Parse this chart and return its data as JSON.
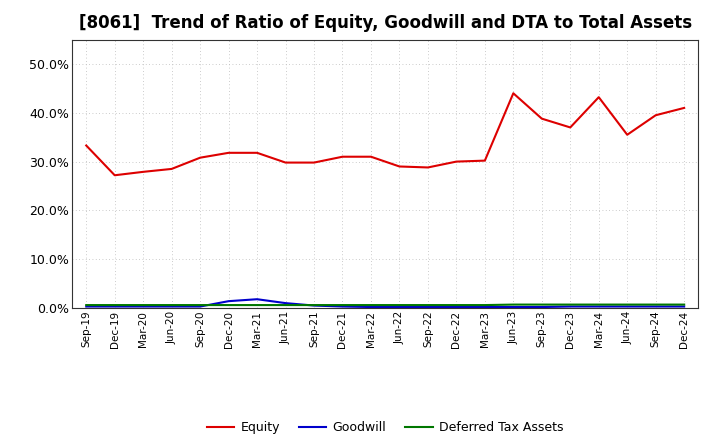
{
  "title": "[8061]  Trend of Ratio of Equity, Goodwill and DTA to Total Assets",
  "x_labels": [
    "Sep-19",
    "Dec-19",
    "Mar-20",
    "Jun-20",
    "Sep-20",
    "Dec-20",
    "Mar-21",
    "Jun-21",
    "Sep-21",
    "Dec-21",
    "Mar-22",
    "Jun-22",
    "Sep-22",
    "Dec-22",
    "Mar-23",
    "Jun-23",
    "Sep-23",
    "Dec-23",
    "Mar-24",
    "Jun-24",
    "Sep-24",
    "Dec-24"
  ],
  "equity": [
    0.333,
    0.272,
    0.279,
    0.285,
    0.308,
    0.318,
    0.318,
    0.298,
    0.298,
    0.31,
    0.31,
    0.29,
    0.288,
    0.3,
    0.302,
    0.44,
    0.388,
    0.37,
    0.432,
    0.355,
    0.395,
    0.41
  ],
  "goodwill": [
    0.003,
    0.003,
    0.003,
    0.003,
    0.003,
    0.014,
    0.018,
    0.01,
    0.005,
    0.003,
    0.002,
    0.002,
    0.002,
    0.002,
    0.002,
    0.002,
    0.002,
    0.003,
    0.003,
    0.003,
    0.003,
    0.003
  ],
  "dta": [
    0.006,
    0.006,
    0.006,
    0.006,
    0.006,
    0.006,
    0.006,
    0.006,
    0.006,
    0.006,
    0.006,
    0.006,
    0.006,
    0.006,
    0.006,
    0.007,
    0.007,
    0.007,
    0.007,
    0.007,
    0.007,
    0.007
  ],
  "equity_color": "#dd0000",
  "goodwill_color": "#0000cc",
  "dta_color": "#007700",
  "background_color": "#ffffff",
  "plot_bg_color": "#ffffff",
  "grid_color": "#bbbbbb",
  "ylim": [
    0.0,
    0.55
  ],
  "yticks": [
    0.0,
    0.1,
    0.2,
    0.3,
    0.4,
    0.5
  ],
  "title_fontsize": 12,
  "legend_labels": [
    "Equity",
    "Goodwill",
    "Deferred Tax Assets"
  ]
}
